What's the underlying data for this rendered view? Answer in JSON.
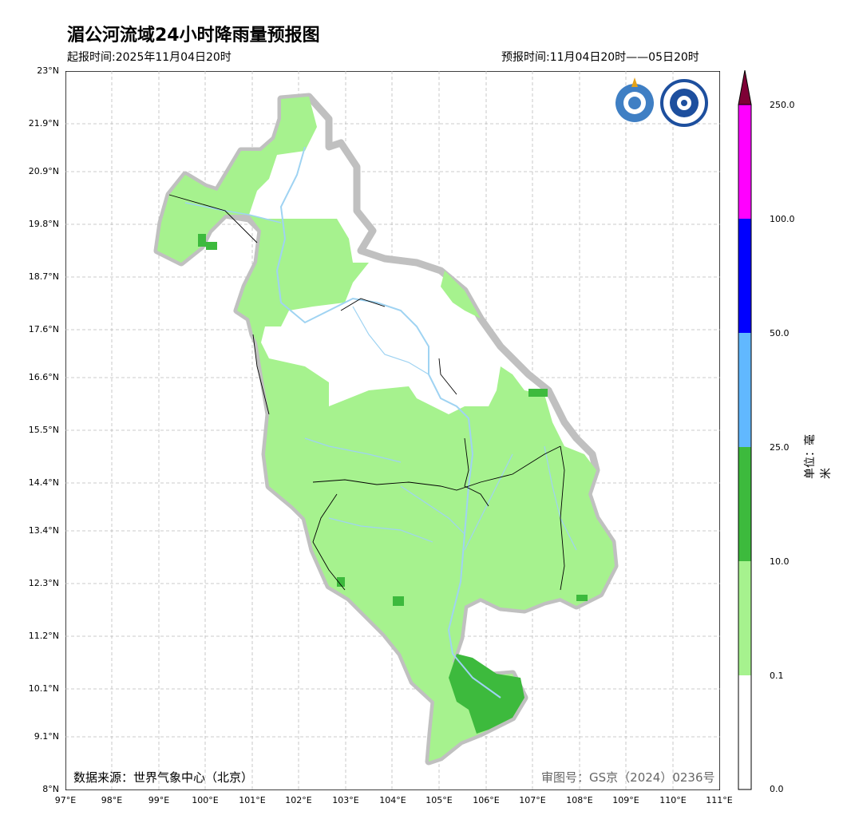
{
  "title": "湄公河流域24小时降雨量预报图",
  "issue_time": "起报时间:2025年11月04日20时",
  "forecast_time": "预报时间:11月04日20时——05日20时",
  "lat_labels": [
    "23°N",
    "21.9°N",
    "20.9°N",
    "19.8°N",
    "18.7°N",
    "17.6°N",
    "16.6°N",
    "15.5°N",
    "14.4°N",
    "13.4°N",
    "12.3°N",
    "11.2°N",
    "10.1°N",
    "9.1°N",
    "8°N"
  ],
  "lon_labels": [
    "97°E",
    "98°E",
    "99°E",
    "100°E",
    "101°E",
    "102°E",
    "103°E",
    "104°E",
    "105°E",
    "106°E",
    "107°E",
    "108°E",
    "109°E",
    "110°E",
    "111°E"
  ],
  "colorbar": {
    "ticks": [
      "250.0",
      "100.0",
      "50.0",
      "25.0",
      "10.0",
      "0.1",
      "0.0"
    ],
    "colors": [
      "#ffffff",
      "#a6f28e",
      "#3dba3d",
      "#61b8ff",
      "#0000ff",
      "#ff00ff",
      "#7e0036"
    ],
    "unit": "单位：毫米"
  },
  "data_source": "数据来源：世界气象中心（北京）",
  "review_no": "审图号：GS京（2024）0236号",
  "legend_colors": {
    "river": "#9fd3f2",
    "basin_outline": "#c0c0c0",
    "grid": "#bbbbbb"
  }
}
